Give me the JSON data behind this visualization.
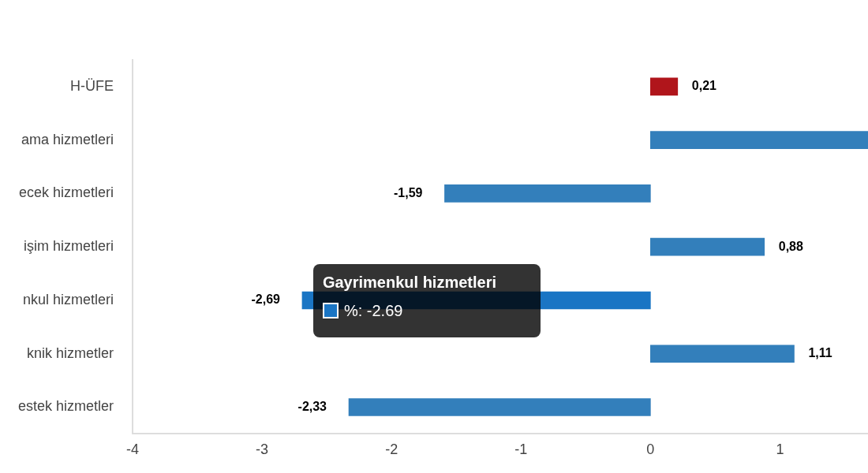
{
  "chart_data": {
    "type": "bar",
    "orientation": "horizontal",
    "categories": [
      "H-ÜFE",
      "ama hizmetleri",
      "ecek hizmetleri",
      "işim hizmetleri",
      "nkul hizmetleri",
      "knik hizmetler",
      "estek hizmetler"
    ],
    "values": [
      0.21,
      1.68,
      -1.59,
      0.88,
      -2.69,
      1.11,
      -2.33
    ],
    "colors": [
      "#b0151b",
      "#337fbb",
      "#337fbb",
      "#337fbb",
      "#1a75c4",
      "#337fbb",
      "#337fbb"
    ],
    "value_labels": [
      "0,21",
      null,
      "-1,59",
      "0,88",
      "-2,69",
      "1,11",
      "-2,33"
    ],
    "xlim": [
      -4,
      1.68
    ],
    "xticks": [
      -4,
      -3,
      -2,
      -1,
      0,
      1
    ],
    "grid": false,
    "legend": false,
    "annotations": [
      "Gayrimenkul hizmetleri",
      "%: -2.69"
    ]
  }
}
